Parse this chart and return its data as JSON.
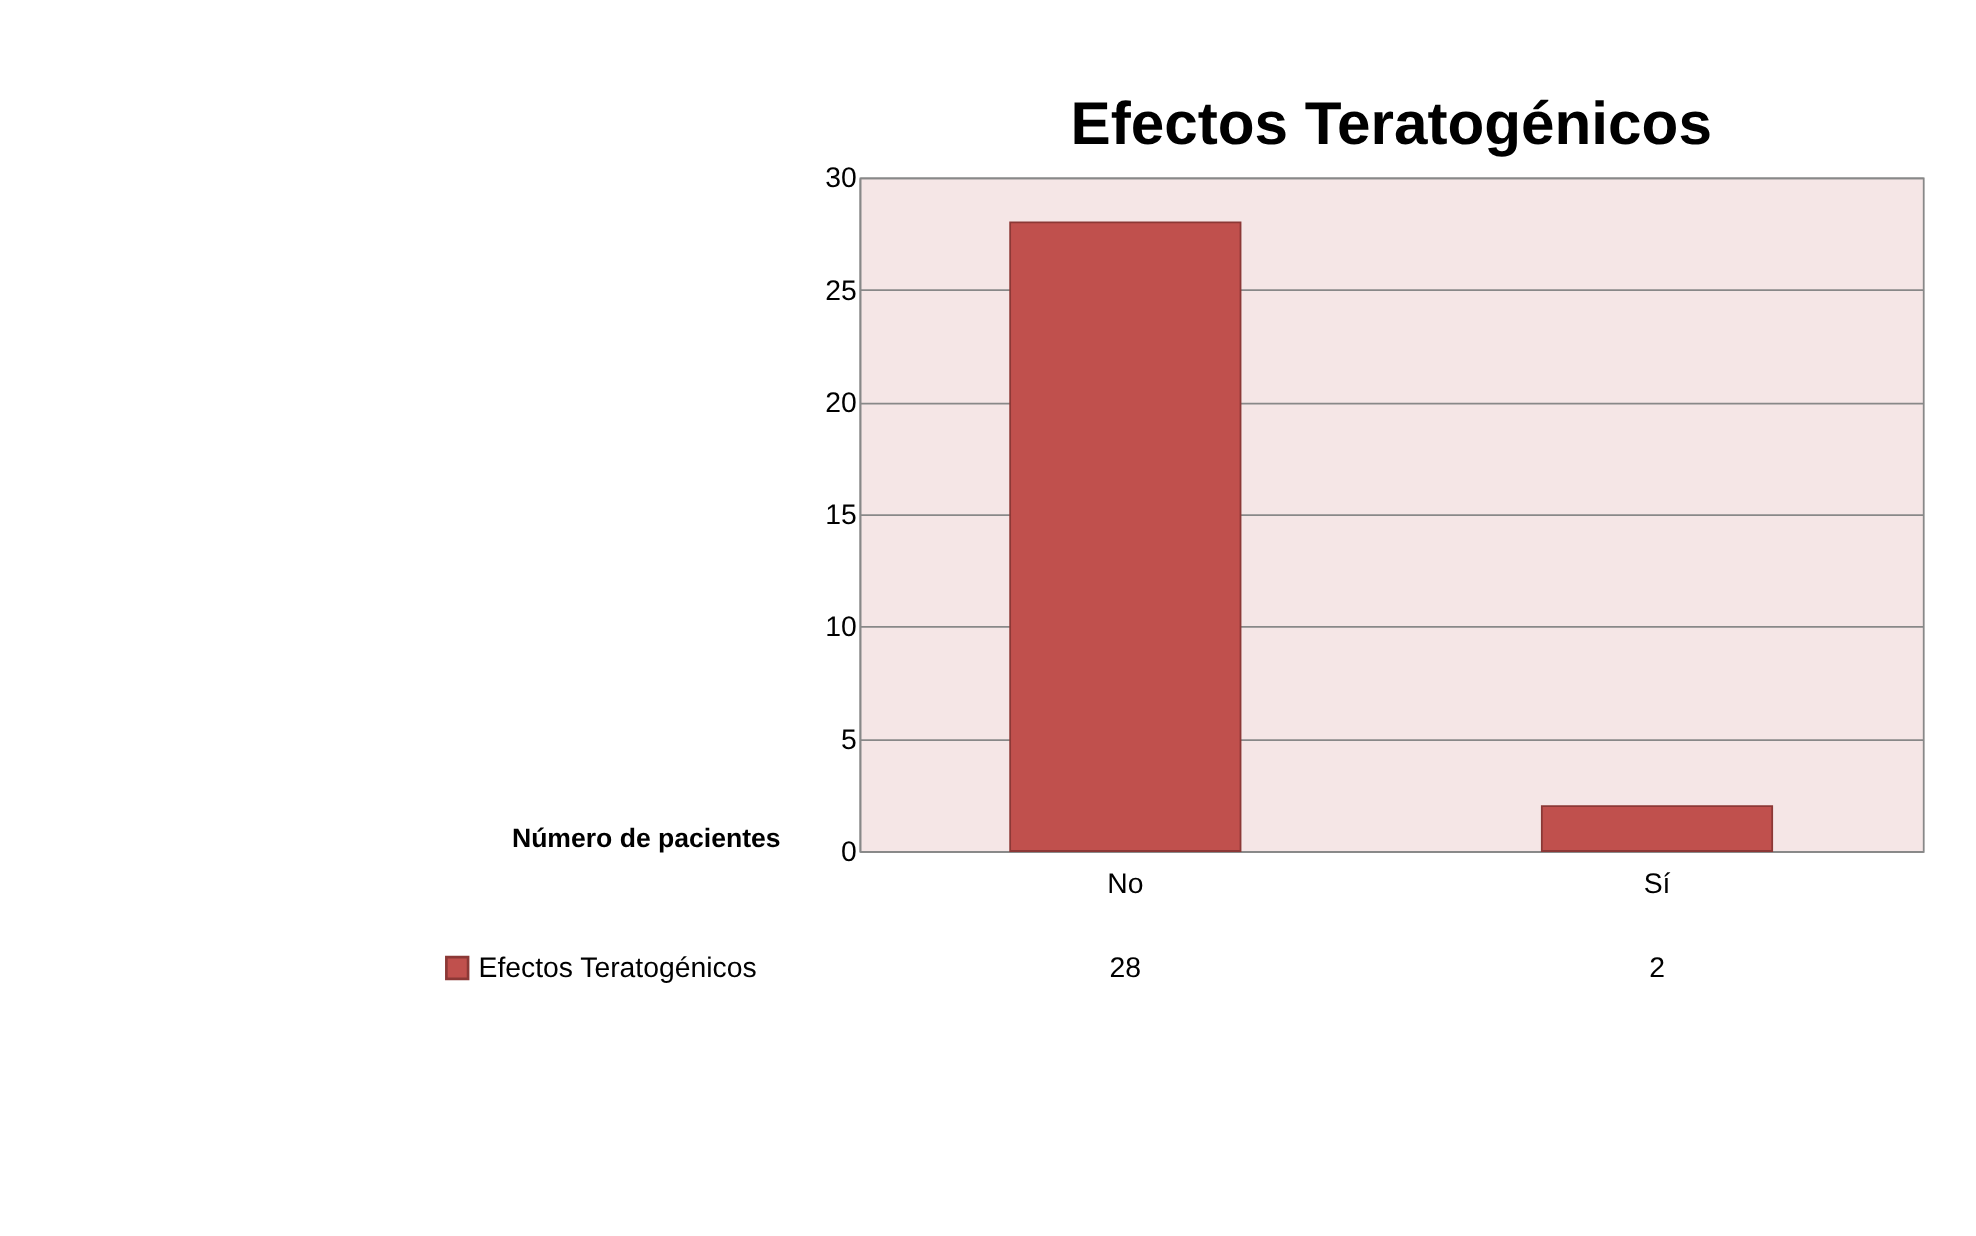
{
  "chart_data": {
    "type": "bar",
    "title": "Efectos Teratogénicos",
    "ylabel": "Número de pacientes",
    "categories": [
      "No",
      "Sí"
    ],
    "series": [
      {
        "name": "Efectos Teratogénicos",
        "color": "#c0504d",
        "values": [
          28,
          2
        ]
      }
    ],
    "ylim": [
      0,
      30
    ],
    "yticks": [
      0,
      5,
      10,
      15,
      20,
      25,
      30
    ],
    "grid": "y",
    "legend": "bottom left",
    "data_labels": true
  }
}
